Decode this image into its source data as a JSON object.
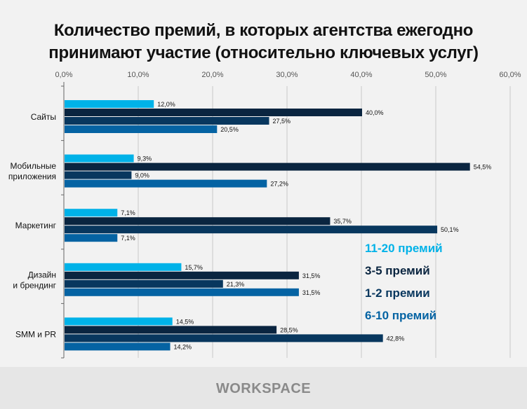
{
  "chart_data": {
    "type": "bar",
    "orientation": "horizontal",
    "title": "Количество премий, в которых агентства ежегодно принимают участие (относительно ключевых услуг)",
    "categories": [
      "Сайты",
      "Мобильные приложения",
      "Маркетинг",
      "Дизайн и брендинг",
      "SMM и PR"
    ],
    "category_lines": [
      [
        "Сайты"
      ],
      [
        "Мобильные",
        "приложения"
      ],
      [
        "Маркетинг"
      ],
      [
        "Дизайн",
        "и брендинг"
      ],
      [
        "SMM и PR"
      ]
    ],
    "series": [
      {
        "name": "11-20 премий",
        "color": "#00b2e8",
        "values": [
          12.0,
          9.3,
          7.1,
          15.7,
          14.5
        ],
        "labels": [
          "12,0%",
          "9,3%",
          "7,1%",
          "15,7%",
          "14,5%"
        ]
      },
      {
        "name": "3-5 премий",
        "color": "#0a2540",
        "values": [
          40.0,
          54.5,
          35.7,
          31.5,
          28.5
        ],
        "labels": [
          "40,0%",
          "54,5%",
          "35,7%",
          "31,5%",
          "28,5%"
        ]
      },
      {
        "name": "1-2 премии",
        "color": "#08375e",
        "values": [
          27.5,
          9.0,
          50.1,
          21.3,
          42.8
        ],
        "labels": [
          "27,5%",
          "9,0%",
          "50,1%",
          "21,3%",
          "42,8%"
        ]
      },
      {
        "name": "6-10 премий",
        "color": "#0563a3",
        "values": [
          20.5,
          27.2,
          7.1,
          31.5,
          14.2
        ],
        "labels": [
          "20,5%",
          "27,2%",
          "7,1%",
          "31,5%",
          "14,2%"
        ]
      }
    ],
    "xlim": [
      0,
      60
    ],
    "xticks": [
      0,
      10,
      20,
      30,
      40,
      50,
      60
    ],
    "xtick_labels": [
      "0,0%",
      "10,0%",
      "20,0%",
      "30,0%",
      "40,0%",
      "50,0%",
      "60,0%"
    ],
    "grid": true,
    "legend_position": "bottom-right"
  },
  "title_lines": [
    "Количество премий, в которых агентства ежегодно",
    "принимают участие (относительно ключевых услуг)"
  ],
  "footer": {
    "logo": "WORKSPACE"
  }
}
